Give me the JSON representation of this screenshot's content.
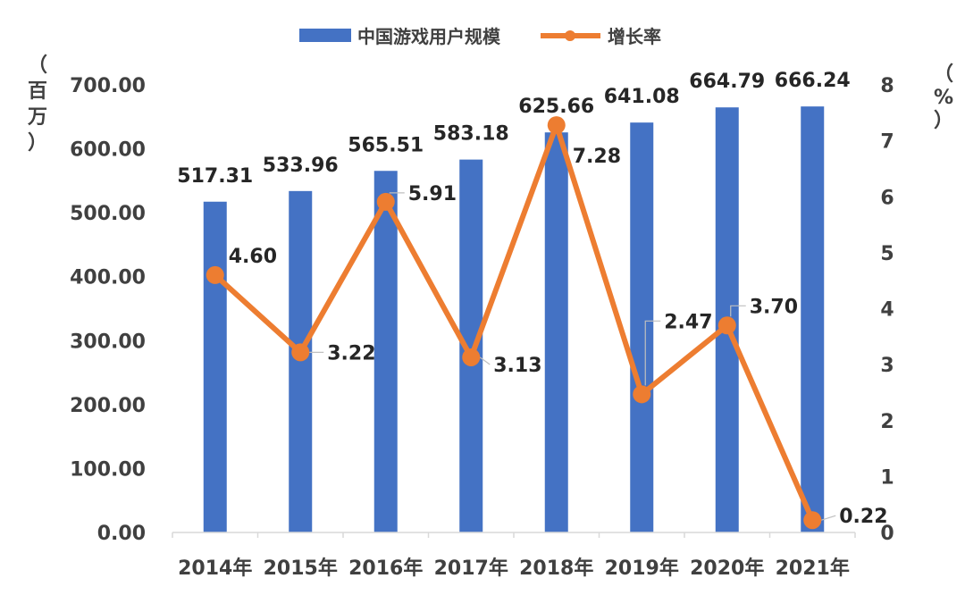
{
  "chart_data": {
    "type": "bar",
    "categories": [
      "2014年",
      "2015年",
      "2016年",
      "2017年",
      "2018年",
      "2019年",
      "2020年",
      "2021年"
    ],
    "series": [
      {
        "name": "中国游戏用户规模",
        "kind": "bar",
        "axis": "left",
        "color": "#4472C4",
        "values": [
          517.31,
          533.96,
          565.51,
          583.18,
          625.66,
          641.08,
          664.79,
          666.24
        ],
        "labels": [
          "517.31",
          "533.96",
          "565.51",
          "583.18",
          "625.66",
          "641.08",
          "664.79",
          "666.24"
        ]
      },
      {
        "name": "增长率",
        "kind": "line",
        "axis": "right",
        "color": "#ED7D31",
        "values": [
          4.6,
          3.22,
          5.91,
          3.13,
          7.28,
          2.47,
          3.7,
          0.22
        ],
        "labels": [
          "4.60",
          "3.22",
          "5.91",
          "3.13",
          "7.28",
          "2.47",
          "3.70",
          "0.22"
        ]
      }
    ],
    "y_left": {
      "label_chars": [
        "（",
        "百",
        "万",
        "）"
      ],
      "ylim": [
        0,
        700
      ],
      "ticks": [
        "0.00",
        "100.00",
        "200.00",
        "300.00",
        "400.00",
        "500.00",
        "600.00",
        "700.00"
      ]
    },
    "y_right": {
      "label_chars": [
        "（",
        "%",
        "）"
      ],
      "ylim": [
        0,
        8
      ],
      "ticks": [
        "0",
        "1",
        "2",
        "3",
        "4",
        "5",
        "6",
        "7",
        "8"
      ]
    },
    "legend_position": "top-center",
    "grid": false
  }
}
